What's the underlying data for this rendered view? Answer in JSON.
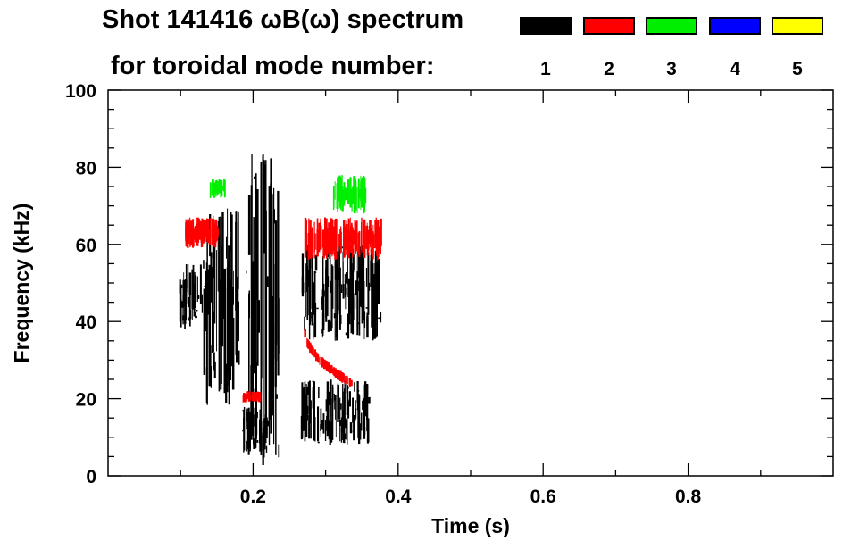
{
  "chart_data": {
    "type": "heatmap",
    "title_line1": "Shot 141416 ωB(ω) spectrum",
    "title_line2": "for toroidal mode number:",
    "xlabel": "Time (s)",
    "ylabel": "Frequency (kHz)",
    "xlim": [
      0.0,
      1.0
    ],
    "ylim": [
      0,
      100
    ],
    "xticks": [
      0.2,
      0.4,
      0.6,
      0.8
    ],
    "xtick_labels": [
      "0.2",
      "0.4",
      "0.6",
      "0.8"
    ],
    "yticks": [
      0,
      20,
      40,
      60,
      80,
      100
    ],
    "ytick_labels": [
      "0",
      "20",
      "40",
      "60",
      "80",
      "100"
    ],
    "legend": [
      {
        "label": "1",
        "color": "#000000"
      },
      {
        "label": "2",
        "color": "#ff0000"
      },
      {
        "label": "3",
        "color": "#00ee00"
      },
      {
        "label": "4",
        "color": "#0000ff"
      },
      {
        "label": "5",
        "color": "#ffff00"
      }
    ],
    "features": [
      {
        "mode": 1,
        "name": "n1-blob-early",
        "t0": 0.095,
        "t1": 0.13,
        "f0": 38,
        "f1": 55
      },
      {
        "mode": 1,
        "name": "n1-streaks-early",
        "t0": 0.13,
        "t1": 0.18,
        "f0": 18,
        "f1": 70
      },
      {
        "mode": 1,
        "name": "n1-streaks-mid",
        "t0": 0.19,
        "t1": 0.235,
        "f0": 2,
        "f1": 84
      },
      {
        "mode": 1,
        "name": "n1-lowfreq-a",
        "t0": 0.185,
        "t1": 0.22,
        "f0": 5,
        "f1": 18
      },
      {
        "mode": 1,
        "name": "n1-lowfreq-b",
        "t0": 0.265,
        "t1": 0.36,
        "f0": 8,
        "f1": 25
      },
      {
        "mode": 1,
        "name": "n1-band-late",
        "t0": 0.265,
        "t1": 0.375,
        "f0": 35,
        "f1": 60
      },
      {
        "mode": 2,
        "name": "n2-arc-late",
        "t0": 0.27,
        "t1": 0.335,
        "f0": 24,
        "f1": 38
      },
      {
        "mode": 2,
        "name": "n2-band-early",
        "t0": 0.105,
        "t1": 0.15,
        "f0": 59,
        "f1": 67
      },
      {
        "mode": 2,
        "name": "n2-band-late",
        "t0": 0.27,
        "t1": 0.375,
        "f0": 56,
        "f1": 67
      },
      {
        "mode": 2,
        "name": "n2-patch-mid",
        "t0": 0.185,
        "t1": 0.21,
        "f0": 19,
        "f1": 22
      },
      {
        "mode": 3,
        "name": "n3-patch-late",
        "t0": 0.31,
        "t1": 0.355,
        "f0": 68,
        "f1": 78
      },
      {
        "mode": 3,
        "name": "n3-patch-early",
        "t0": 0.14,
        "t1": 0.16,
        "f0": 72,
        "f1": 77
      }
    ]
  }
}
